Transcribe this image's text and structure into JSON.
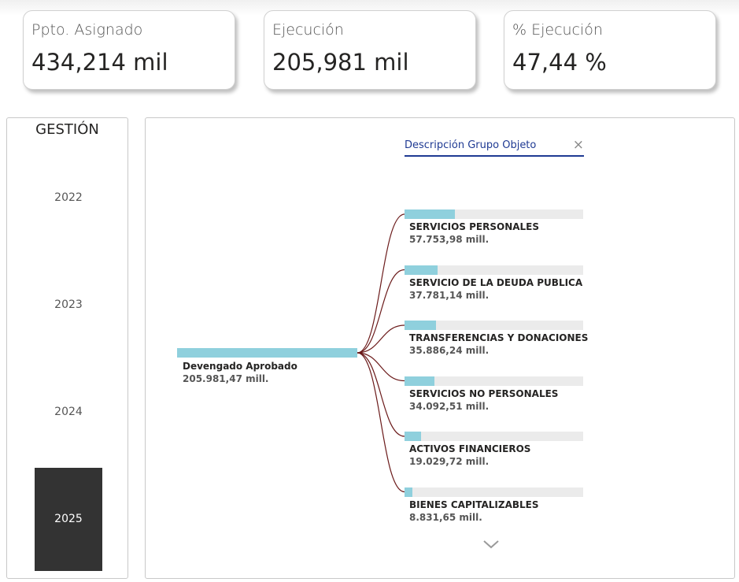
{
  "kpis": [
    {
      "title": "Ppto. Asignado",
      "value": "434,214 mil"
    },
    {
      "title": "Ejecución",
      "value": "205,981 mil"
    },
    {
      "title": "% Ejecución",
      "value": "47,44 %"
    }
  ],
  "slicer": {
    "title": "GESTIÓN",
    "years": [
      "2022",
      "2023",
      "2024",
      "2025"
    ],
    "selected": "2025"
  },
  "tree": {
    "level_header": "Descripción Grupo Objeto",
    "close_symbol": "×",
    "root": {
      "label": "Devengado Aprobado",
      "value_text": "205.981,47 mill.",
      "value": 205981.47
    },
    "children": [
      {
        "label": "SERVICIOS PERSONALES",
        "value_text": "57.753,98 mill.",
        "value": 57753.98
      },
      {
        "label": "SERVICIO DE LA DEUDA PUBLICA",
        "value_text": "37.781,14 mill.",
        "value": 37781.14
      },
      {
        "label": "TRANSFERENCIAS Y DONACIONES",
        "value_text": "35.886,24 mill.",
        "value": 35886.24
      },
      {
        "label": "SERVICIOS NO PERSONALES",
        "value_text": "34.092,51 mill.",
        "value": 34092.51
      },
      {
        "label": "ACTIVOS FINANCIEROS",
        "value_text": "19.029,72 mill.",
        "value": 19029.72
      },
      {
        "label": "BIENES CAPITALIZABLES",
        "value_text": "8.831,65 mill.",
        "value": 8831.65
      }
    ]
  },
  "colors": {
    "bar": "#8fd0dd",
    "track": "#ebebeb",
    "link": "#6b1a1a",
    "selected_year_bg": "#333333",
    "header_accent": "#1f3a93"
  },
  "icons": {
    "close": "close-icon",
    "expand": "chevron-down-icon"
  }
}
